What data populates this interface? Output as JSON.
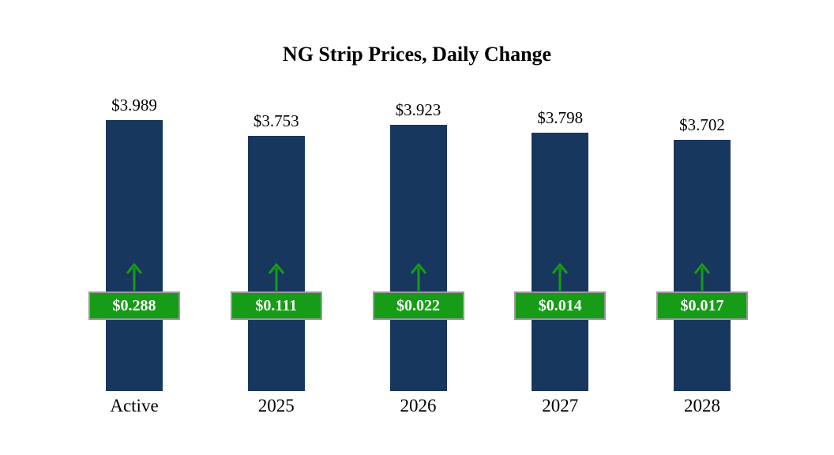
{
  "title": "NG Strip Prices, Daily Change",
  "chart_data": {
    "type": "bar",
    "title": "NG Strip Prices, Daily Change",
    "categories": [
      "Active",
      "2025",
      "2026",
      "2027",
      "2028"
    ],
    "series": [
      {
        "name": "NG Strip Price",
        "values": [
          3.989,
          3.753,
          3.923,
          3.798,
          3.702
        ]
      },
      {
        "name": "Daily Change",
        "values": [
          0.288,
          0.111,
          0.022,
          0.014,
          0.017
        ]
      }
    ],
    "price_labels": [
      "$3.989",
      "$3.753",
      "$3.923",
      "$3.798",
      "$3.702"
    ],
    "change_labels": [
      "$0.288",
      "$0.111",
      "$0.022",
      "$0.014",
      "$0.017"
    ],
    "change_direction": "up",
    "xlabel": "",
    "ylabel": "",
    "ylim": [
      0,
      4.2
    ],
    "grid": false,
    "legend": false,
    "colors": {
      "bar": "#17375e",
      "change_badge": "#169c16",
      "badge_border": "#999999",
      "badge_text": "#ffffff",
      "text": "#000000",
      "background": "#ffffff"
    }
  }
}
